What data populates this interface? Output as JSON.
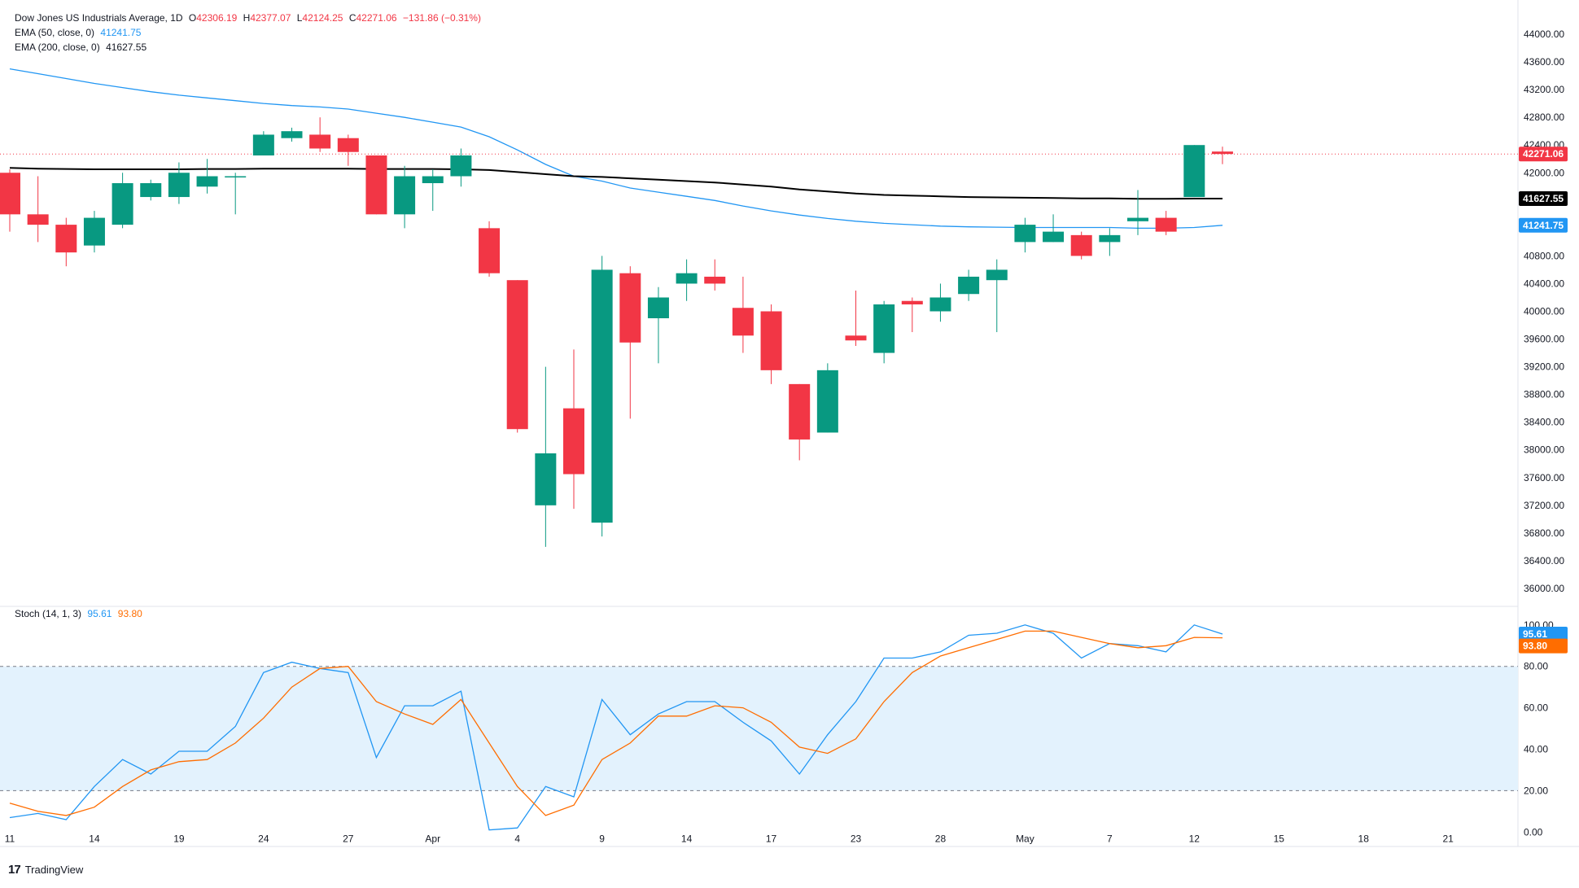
{
  "header": {
    "symbol": "Dow Jones US Industrials Average, 1D",
    "open_label": "O",
    "open": "42306.19",
    "high_label": "H",
    "high": "42377.07",
    "low_label": "L",
    "low": "42124.25",
    "close_label": "C",
    "close": "42271.06",
    "change": "−131.86 (−0.31%)"
  },
  "indicators": {
    "ema50": {
      "label": "EMA (50, close, 0)",
      "value": "41241.75",
      "color": "#2196f3"
    },
    "ema200": {
      "label": "EMA (200, close, 0)",
      "value": "41627.55",
      "color": "#000000"
    },
    "stoch": {
      "label": "Stoch (14, 1, 3)",
      "k_value": "95.61",
      "d_value": "93.80",
      "k_color": "#2196f3",
      "d_color": "#ff6d00"
    }
  },
  "branding": {
    "logo": "17",
    "name": "TradingView"
  },
  "chart_data": [
    {
      "type": "candlestick",
      "title": "Dow Jones US Industrials Average, 1D",
      "ylim": [
        35800,
        44200
      ],
      "y_ticks": [
        "36000.00",
        "36400.00",
        "36800.00",
        "37200.00",
        "37600.00",
        "38000.00",
        "38400.00",
        "38800.00",
        "39200.00",
        "39600.00",
        "40000.00",
        "40400.00",
        "40800.00",
        "41200.00",
        "41600.00",
        "42000.00",
        "42400.00",
        "42800.00",
        "43200.00",
        "43600.00",
        "44000.00"
      ],
      "y_tick_values": [
        36000,
        36400,
        36800,
        37200,
        37600,
        38000,
        38400,
        38800,
        39200,
        39600,
        40000,
        40400,
        40800,
        41200,
        41600,
        42000,
        42400,
        42800,
        43200,
        43600,
        44000
      ],
      "x_tick_labels": [
        {
          "day": 0,
          "label": "11"
        },
        {
          "day": 3,
          "label": "14"
        },
        {
          "day": 6,
          "label": "19"
        },
        {
          "day": 9,
          "label": "24"
        },
        {
          "day": 12,
          "label": "27"
        },
        {
          "day": 15,
          "label": "Apr"
        },
        {
          "day": 18,
          "label": "4"
        },
        {
          "day": 21,
          "label": "9"
        },
        {
          "day": 24,
          "label": "14"
        },
        {
          "day": 27,
          "label": "17"
        },
        {
          "day": 30,
          "label": "23"
        },
        {
          "day": 33,
          "label": "28"
        },
        {
          "day": 36,
          "label": "May"
        },
        {
          "day": 39,
          "label": "7"
        },
        {
          "day": 42,
          "label": "12"
        },
        {
          "day": 45,
          "label": "15"
        },
        {
          "day": 48,
          "label": "18"
        },
        {
          "day": 51,
          "label": "21"
        }
      ],
      "candles": [
        {
          "o": 42000,
          "h": 42050,
          "l": 41150,
          "c": 41400
        },
        {
          "o": 41400,
          "h": 41950,
          "l": 41000,
          "c": 41250
        },
        {
          "o": 41250,
          "h": 41350,
          "l": 40650,
          "c": 40850
        },
        {
          "o": 40950,
          "h": 41450,
          "l": 40850,
          "c": 41350
        },
        {
          "o": 41250,
          "h": 42000,
          "l": 41200,
          "c": 41850
        },
        {
          "o": 41650,
          "h": 41900,
          "l": 41600,
          "c": 41850
        },
        {
          "o": 41650,
          "h": 42150,
          "l": 41550,
          "c": 42000
        },
        {
          "o": 41800,
          "h": 42200,
          "l": 41700,
          "c": 41950
        },
        {
          "o": 41950,
          "h": 42000,
          "l": 41400,
          "c": 41950
        },
        {
          "o": 42250,
          "h": 42600,
          "l": 42250,
          "c": 42550
        },
        {
          "o": 42500,
          "h": 42650,
          "l": 42450,
          "c": 42600
        },
        {
          "o": 42550,
          "h": 42800,
          "l": 42300,
          "c": 42350
        },
        {
          "o": 42500,
          "h": 42550,
          "l": 42100,
          "c": 42300
        },
        {
          "o": 42250,
          "h": 42250,
          "l": 41400,
          "c": 41400
        },
        {
          "o": 41400,
          "h": 42100,
          "l": 41200,
          "c": 41950
        },
        {
          "o": 41850,
          "h": 42050,
          "l": 41450,
          "c": 41950
        },
        {
          "o": 41950,
          "h": 42350,
          "l": 41800,
          "c": 42250
        },
        {
          "o": 41200,
          "h": 41300,
          "l": 40500,
          "c": 40550
        },
        {
          "o": 40450,
          "h": 40450,
          "l": 38250,
          "c": 38300
        },
        {
          "o": 37200,
          "h": 39200,
          "l": 36600,
          "c": 37950
        },
        {
          "o": 38600,
          "h": 39450,
          "l": 37150,
          "c": 37650
        },
        {
          "o": 36950,
          "h": 40800,
          "l": 36750,
          "c": 40600
        },
        {
          "o": 40550,
          "h": 40650,
          "l": 38450,
          "c": 39550
        },
        {
          "o": 39900,
          "h": 40350,
          "l": 39250,
          "c": 40200
        },
        {
          "o": 40400,
          "h": 40750,
          "l": 40150,
          "c": 40550
        },
        {
          "o": 40500,
          "h": 40750,
          "l": 40300,
          "c": 40400
        },
        {
          "o": 40050,
          "h": 40500,
          "l": 39400,
          "c": 39650
        },
        {
          "o": 40000,
          "h": 40100,
          "l": 38950,
          "c": 39150
        },
        {
          "o": 38950,
          "h": 38950,
          "l": 37850,
          "c": 38150
        },
        {
          "o": 38250,
          "h": 39250,
          "l": 38250,
          "c": 39150
        },
        {
          "o": 39650,
          "h": 40300,
          "l": 39500,
          "c": 39580
        },
        {
          "o": 39400,
          "h": 40150,
          "l": 39250,
          "c": 40100
        },
        {
          "o": 40150,
          "h": 40200,
          "l": 39700,
          "c": 40100
        },
        {
          "o": 40000,
          "h": 40400,
          "l": 39850,
          "c": 40200
        },
        {
          "o": 40250,
          "h": 40600,
          "l": 40150,
          "c": 40500
        },
        {
          "o": 40450,
          "h": 40750,
          "l": 39700,
          "c": 40600
        },
        {
          "o": 41000,
          "h": 41350,
          "l": 40850,
          "c": 41250
        },
        {
          "o": 41000,
          "h": 41400,
          "l": 41000,
          "c": 41150
        },
        {
          "o": 41100,
          "h": 41150,
          "l": 40750,
          "c": 40800
        },
        {
          "o": 41000,
          "h": 41200,
          "l": 40800,
          "c": 41100
        },
        {
          "o": 41300,
          "h": 41750,
          "l": 41100,
          "c": 41350
        },
        {
          "o": 41350,
          "h": 41450,
          "l": 41100,
          "c": 41150
        },
        {
          "o": 41650,
          "h": 42400,
          "l": 41650,
          "c": 42400
        },
        {
          "o": 42306.19,
          "h": 42377.07,
          "l": 42124.25,
          "c": 42271.06
        }
      ],
      "ema50": [
        43500,
        43430,
        43360,
        43290,
        43230,
        43170,
        43120,
        43080,
        43040,
        43000,
        42970,
        42950,
        42920,
        42860,
        42800,
        42730,
        42660,
        42520,
        42330,
        42120,
        41950,
        41880,
        41780,
        41720,
        41660,
        41600,
        41520,
        41450,
        41390,
        41340,
        41300,
        41270,
        41250,
        41230,
        41220,
        41215,
        41210,
        41210,
        41210,
        41210,
        41200,
        41200,
        41210,
        41241.75
      ],
      "ema200": [
        42070,
        42060,
        42055,
        42050,
        42050,
        42050,
        42050,
        42055,
        42055,
        42060,
        42060,
        42060,
        42060,
        42055,
        42055,
        42055,
        42050,
        42040,
        42010,
        41980,
        41950,
        41940,
        41920,
        41900,
        41880,
        41860,
        41830,
        41800,
        41760,
        41730,
        41700,
        41680,
        41670,
        41660,
        41650,
        41645,
        41640,
        41635,
        41630,
        41630,
        41625,
        41625,
        41627,
        41627.55
      ],
      "last_price_label": "42271.06",
      "ema200_label": "41627.55",
      "ema50_label": "41241.75",
      "colors": {
        "up": "#089981",
        "down": "#f23645",
        "ema50": "#2196f3",
        "ema200": "#000000",
        "last_line": "#f23645"
      }
    },
    {
      "type": "line",
      "title": "Stoch (14, 1, 3)",
      "ylim": [
        -5,
        107
      ],
      "y_ticks": [
        "0.00",
        "20.00",
        "40.00",
        "60.00",
        "80.00",
        "100.00"
      ],
      "y_tick_values": [
        0,
        20,
        40,
        60,
        80,
        100
      ],
      "bands": {
        "upper": 80,
        "lower": 20,
        "fill": "#e3f2fd"
      },
      "series": [
        {
          "name": "K",
          "color": "#2196f3",
          "values": [
            7,
            9,
            6,
            22,
            35,
            28,
            39,
            39,
            51,
            77,
            82,
            79,
            77,
            36,
            61,
            61,
            68,
            1,
            2,
            22,
            17,
            64,
            47,
            57,
            63,
            63,
            53,
            44,
            28,
            47,
            63,
            84,
            84,
            87,
            95,
            96,
            100,
            96,
            84,
            91,
            90,
            87,
            100,
            95.61
          ]
        },
        {
          "name": "D",
          "color": "#ff6d00",
          "values": [
            14,
            10,
            8,
            12,
            22,
            30,
            34,
            35,
            43,
            55,
            70,
            79,
            80,
            63,
            57,
            52,
            64,
            43,
            22,
            8,
            13,
            35,
            43,
            56,
            56,
            61,
            60,
            53,
            41,
            38,
            45,
            63,
            77,
            85,
            89,
            93,
            97,
            97,
            94,
            91,
            89,
            90,
            94,
            93.8
          ]
        }
      ],
      "k_label": "95.61",
      "d_label": "93.80"
    }
  ]
}
